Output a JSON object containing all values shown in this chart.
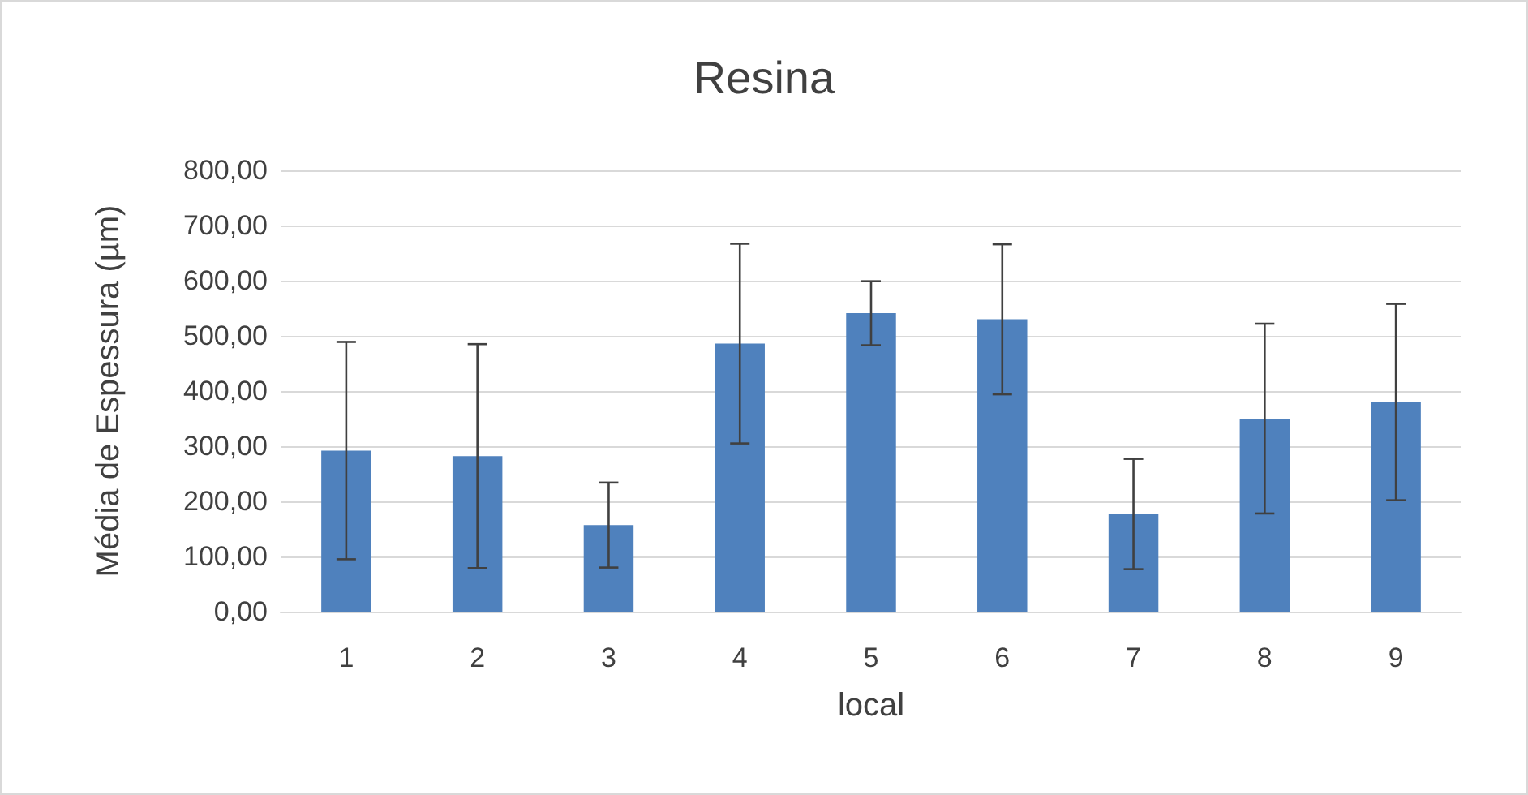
{
  "chart_data": {
    "type": "bar",
    "title": "Resina",
    "xlabel": "local",
    "ylabel": "Média de Espessura (µm)",
    "categories": [
      "1",
      "2",
      "3",
      "4",
      "5",
      "6",
      "7",
      "8",
      "9"
    ],
    "values": [
      292,
      282,
      157,
      486,
      541,
      530,
      177,
      350,
      380
    ],
    "errors": [
      197,
      203,
      77,
      181,
      58,
      136,
      100,
      172,
      178
    ],
    "color": "#4f81bd",
    "ylim": [
      0,
      800
    ],
    "yticks": [
      {
        "value": 0,
        "label": "0,00"
      },
      {
        "value": 100,
        "label": "100,00"
      },
      {
        "value": 200,
        "label": "200,00"
      },
      {
        "value": 300,
        "label": "300,00"
      },
      {
        "value": 400,
        "label": "400,00"
      },
      {
        "value": 500,
        "label": "500,00"
      },
      {
        "value": 600,
        "label": "600,00"
      },
      {
        "value": 700,
        "label": "700,00"
      },
      {
        "value": 800,
        "label": "800,00"
      }
    ],
    "grid": "y"
  }
}
